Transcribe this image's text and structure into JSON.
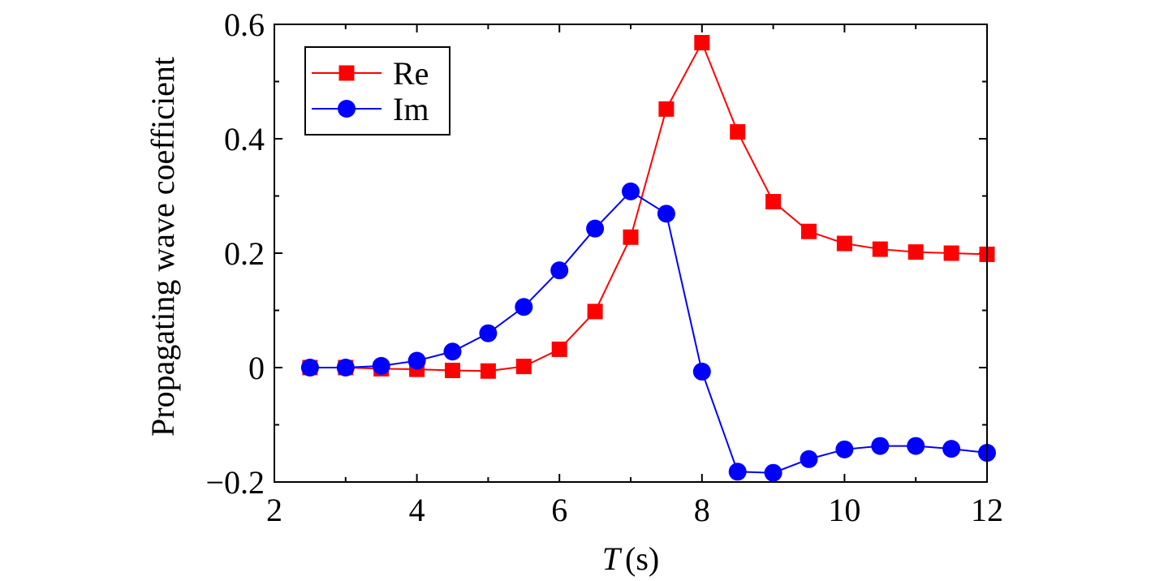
{
  "chart_data": {
    "type": "line",
    "title": "",
    "xlabel_var": "T",
    "xlabel_unit": "(s)",
    "ylabel": "Propagating wave coefficient",
    "xlim": [
      2,
      12
    ],
    "ylim": [
      -0.2,
      0.6
    ],
    "x_ticks": [
      2,
      4,
      6,
      8,
      10,
      12
    ],
    "y_ticks": [
      -0.2,
      0,
      0.2,
      0.4,
      0.6
    ],
    "x_tick_labels": [
      "2",
      "4",
      "6",
      "8",
      "10",
      "12"
    ],
    "y_tick_labels": [
      "−0.2",
      "0",
      "0.2",
      "0.4",
      "0.6"
    ],
    "grid": false,
    "legend_position": "top-left",
    "x": [
      2.5,
      3,
      3.5,
      4,
      4.5,
      5,
      5.5,
      6,
      6.5,
      7,
      7.5,
      8,
      8.5,
      9,
      9.5,
      10,
      10.5,
      11,
      11.5,
      12
    ],
    "series": [
      {
        "name": "Re",
        "color": "#ff0000",
        "marker": "square",
        "values": [
          0.0,
          0.0,
          -0.002,
          -0.003,
          -0.005,
          -0.006,
          0.002,
          0.032,
          0.098,
          0.228,
          0.452,
          0.568,
          0.412,
          0.29,
          0.238,
          0.217,
          0.207,
          0.202,
          0.2,
          0.198
        ]
      },
      {
        "name": "Im",
        "color": "#0000ff",
        "marker": "circle",
        "values": [
          0.0,
          0.0,
          0.003,
          0.012,
          0.028,
          0.06,
          0.106,
          0.17,
          0.243,
          0.308,
          0.269,
          -0.007,
          -0.182,
          -0.184,
          -0.16,
          -0.143,
          -0.137,
          -0.137,
          -0.142,
          -0.149
        ]
      }
    ]
  }
}
